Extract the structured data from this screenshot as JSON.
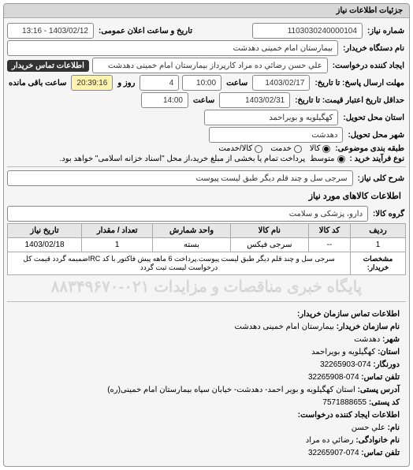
{
  "card_title": "جزئیات اطلاعات نیاز",
  "fields": {
    "request_no_label": "شماره نیاز:",
    "request_no": "1103030240000104",
    "announce_label": "تاریخ و ساعت اعلان عمومی:",
    "announce_value": "1403/02/12 - 13:16",
    "buyer_org_label": "نام دستگاه خریدار:",
    "buyer_org": "بیمارستان امام خمینی دهدشت",
    "creator_label": "ایجاد کننده درخواست:",
    "creator": "علي حسن رضائي ده مراد کارپرداز بیمارستان امام خمینی دهدشت",
    "buyer_contact_label": "اطلاعات تماس خریدار",
    "deadline_label": "مهلت ارسال پاسخ: تا تاریخ:",
    "deadline_date": "1403/02/17",
    "time_label": "ساعت",
    "deadline_time": "10:00",
    "days_label": "روز و",
    "days_value": "4",
    "remaining_label": "ساعت باقی مانده",
    "remaining_time": "20:39:16",
    "validity_label": "حداقل تاریخ اعتبار قیمت: تا تاریخ:",
    "validity_date": "1403/02/31",
    "validity_time": "14:00",
    "province_label": "استان محل تحویل:",
    "province": "کهگیلویه و بویراحمد",
    "city_label": "شهر محل تحویل:",
    "city": "دهدشت",
    "category_label": "طبقه بندی موضوعی:",
    "cat_kala": "کالا",
    "cat_khadmat": "خدمت",
    "cat_both": "کالا/خدمت",
    "process_label": "نوع فرآیند خرید :",
    "proc_mid": "متوسط",
    "proc_desc": "پرداخت تمام یا بخشی از مبلغ خرید،از محل \"اسناد خزانه اسلامی\" خواهد بود.",
    "need_title_label": "شرح کلی نیاز:",
    "need_title": "سرجی سل و چند قلم دیگر طبق لیست پیوست",
    "items_section": "اطلاعات کالاهای مورد نیاز",
    "group_label": "گروه کالا:",
    "group_value": "دارو، پزشکی و سلامت"
  },
  "table": {
    "headers": [
      "ردیف",
      "کد کالا",
      "نام کالا",
      "واحد شمارش",
      "تعداد / مقدار",
      "تاریخ نیاز"
    ],
    "row": [
      "1",
      "--",
      "سرجی فیکس",
      "بسته",
      "1",
      "1403/02/18"
    ],
    "desc_label": "مشخصات خریدار:",
    "desc_text": "سرجی سل و چند قلم دیگر طبق لیست پیوست.پرداخت 6 ماهه پیش فاکتور با کد IRCضمیمه گردد قیمت کل درخواست لیست ثبت گردد"
  },
  "watermark": "پایگاه خبری مناقصات و مزایدات ۰۲۱-۸۸۳۴۹۶۷۰",
  "contact": {
    "header": "اطلاعات تماس سازمان خریدار:",
    "org_label": "نام سازمان خریدار:",
    "org": "بیمارستان امام خمینی دهدشت",
    "city_label": "شهر:",
    "city": "دهدشت",
    "prov_label": "استان:",
    "prov": "کهگیلویه و بویراحمد",
    "fax_label": "دورنگار:",
    "fax": "074-32265903",
    "tel_label": "تلفن تماس:",
    "tel": "074-32265908",
    "addr_label": "آدرس پستی:",
    "addr": "استان کهگیلویه و بویر احمد- دهدشت- خیابان سپاه بیمارستان امام خمینی(ره)",
    "post_label": "کد پستی:",
    "post": "7571888655",
    "creator_header": "اطلاعات ایجاد کننده درخواست:",
    "name_label": "نام:",
    "name": "علي حسن",
    "lname_label": "نام خانوادگی:",
    "lname": "رضائي ده مراد",
    "ctel_label": "تلفن تماس:",
    "ctel": "074-32265907"
  }
}
